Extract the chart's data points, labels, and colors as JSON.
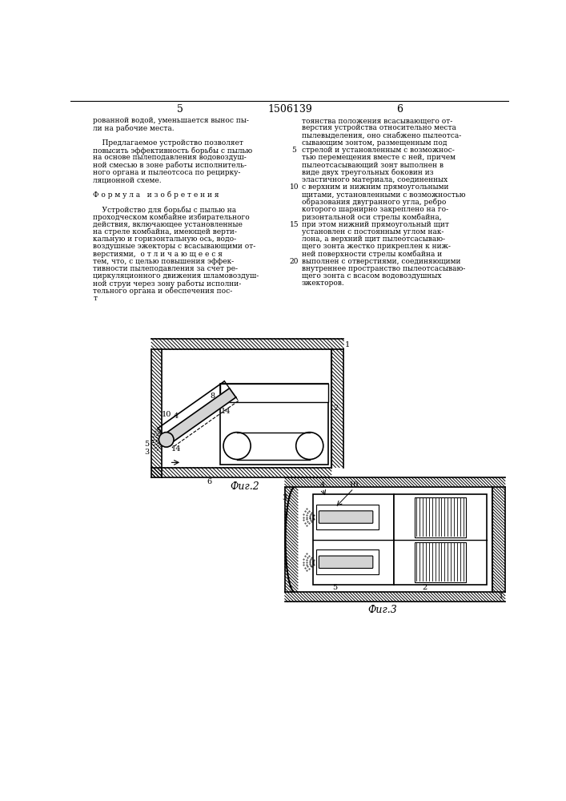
{
  "bg_color": "#ffffff",
  "page_num_left": "5",
  "page_center": "1506139",
  "page_num_right": "6",
  "left_col_lines": [
    "рованной водой, уменьшается вынос пы-",
    "ли на рабочие места.",
    "",
    "    Предлагаемое устройство позволяет",
    "повысить эффективность борьбы с пылью",
    "на основе пылеподавления водовоздуш-",
    "ной смесью в зоне работы исполнитель-",
    "ного органа и пылеотсоса по рецирку-",
    "ляционной схеме.",
    "",
    "Ф о р м у л а   и з о б р е т е н и я",
    "",
    "    Устройство для борьбы с пылью на",
    "проходческом комбайне избирательного",
    "действия, включающее установленные",
    "на стреле комбайна, имеющей верти-",
    "кальную и горизонтальную ось, водо-",
    "воздушные эжекторы с всасывающими от-",
    "верстиями,  о т л и ч а ю щ е е с я",
    "тем, что, с целью повышения эффек-",
    "тивности пылеподавления за счет ре-",
    "циркуляционного движения шламовоздуш-",
    "ной струи через зону работы исполни-",
    "тельного органа и обеспечения пос-",
    "т"
  ],
  "right_col_lines": [
    "тоянства положения всасывающего от-",
    "верстия устройства относительно места",
    "пылевыделения, оно снабжено пылеотса-",
    "сывающим зонтом, размещенным под",
    "стрелой и установленным с возможнос-",
    "тью перемещения вместе с ней, причем",
    "пылеотсасывающий зонт выполнен в",
    "виде двух треугольных боковин из",
    "эластичного материала, соединенных",
    "с верхним и нижним прямоугольными",
    "щитами, установленными с возможностью",
    "образования двугранного угла, ребро",
    "которого шарнирно закреплено на го-",
    "ризонтальной оси стрелы комбайна,",
    "при этом нижний прямоугольный щит",
    "установлен с постоянным углом нак-",
    "лона, а верхний щит пылеотсасываю-",
    "щего зонта жестко прикреплен к ниж-",
    "ней поверхности стрелы комбайна и",
    "выполнен с отверстиями, соединяющими",
    "внутреннее пространство пылеотсасываю-",
    "щего зонта с всасом водовоздушных",
    "эжекторов."
  ],
  "line_numbers": [
    [
      4,
      "5"
    ],
    [
      9,
      "10"
    ],
    [
      14,
      "15"
    ],
    [
      19,
      "20"
    ]
  ]
}
